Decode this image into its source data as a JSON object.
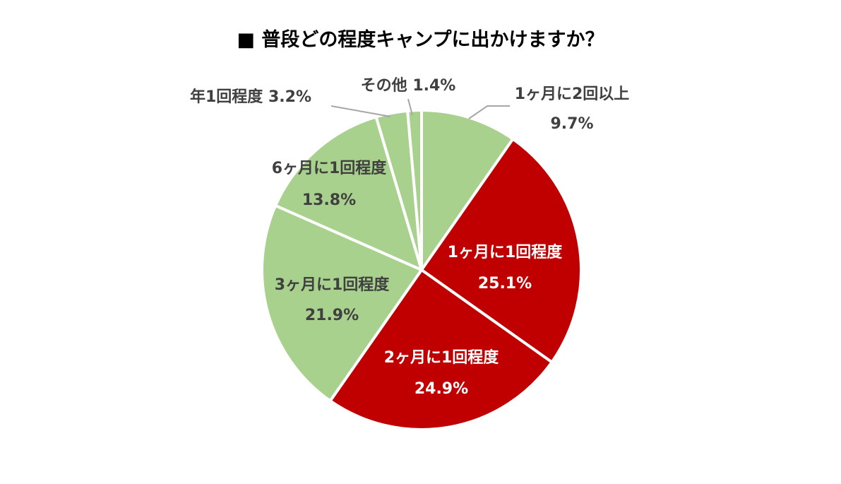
{
  "chart_data": {
    "type": "pie",
    "title": "■ 普段どの程度キャンプに出かけますか？",
    "start_angle_deg": 0,
    "direction": "clockwise",
    "slices": [
      {
        "label": "1ヶ月に2回以上",
        "value": 9.7,
        "value_label": "9.7%",
        "color": "#a9d18e"
      },
      {
        "label": "1ヶ月に1回程度",
        "value": 25.1,
        "value_label": "25.1%",
        "color": "#c00000"
      },
      {
        "label": "2ヶ月に1回程度",
        "value": 24.9,
        "value_label": "24.9%",
        "color": "#c00000"
      },
      {
        "label": "3ヶ月に1回程度",
        "value": 21.9,
        "value_label": "21.9%",
        "color": "#a9d18e"
      },
      {
        "label": "6ヶ月に1回程度",
        "value": 13.8,
        "value_label": "13.8%",
        "color": "#a9d18e"
      },
      {
        "label": "年1回程度",
        "value": 3.2,
        "value_label": "3.2%",
        "color": "#a9d18e"
      },
      {
        "label": "その他",
        "value": 1.4,
        "value_label": "1.4%",
        "color": "#a9d18e"
      }
    ],
    "colors": {
      "highlight": "#c00000",
      "base": "#a9d18e",
      "outside_text": "#404040",
      "leader_line": "#a6a6a6"
    }
  }
}
